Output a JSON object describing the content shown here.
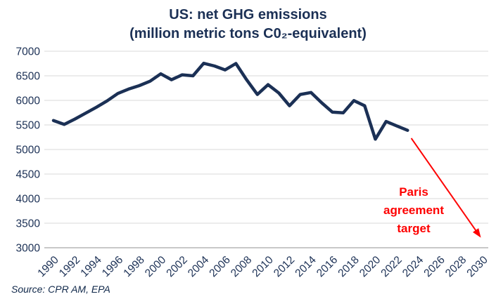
{
  "chart_data": {
    "type": "line",
    "title": "US: net GHG emissions",
    "subtitle": "(million metric tons C0₂-equivalent)",
    "source": "Source: CPR AM, EPA",
    "xlabel": "",
    "ylabel": "",
    "xlim": [
      1990,
      2030
    ],
    "ylim": [
      3000,
      7000
    ],
    "grid": true,
    "legend_position": "none",
    "x_ticks": [
      1990,
      1992,
      1994,
      1996,
      1998,
      2000,
      2002,
      2004,
      2006,
      2008,
      2010,
      2012,
      2014,
      2016,
      2018,
      2020,
      2022,
      2024,
      2026,
      2028,
      2030
    ],
    "y_ticks": [
      7000,
      6500,
      6000,
      5500,
      5000,
      4500,
      4000,
      3500,
      3000
    ],
    "series": [
      {
        "name": "US net GHG emissions",
        "color": "#1b3055",
        "x": [
          1990,
          1991,
          1992,
          1993,
          1994,
          1995,
          1996,
          1997,
          1998,
          1999,
          2000,
          2001,
          2002,
          2003,
          2004,
          2005,
          2006,
          2007,
          2008,
          2009,
          2010,
          2011,
          2012,
          2013,
          2014,
          2015,
          2016,
          2017,
          2018,
          2019,
          2020,
          2021,
          2022,
          2023
        ],
        "values": [
          5590,
          5510,
          5620,
          5740,
          5860,
          5990,
          6140,
          6230,
          6300,
          6390,
          6540,
          6420,
          6520,
          6500,
          6755,
          6700,
          6620,
          6750,
          6420,
          6120,
          6320,
          6150,
          5890,
          6120,
          6160,
          5950,
          5760,
          5745,
          5995,
          5890,
          5210,
          5570,
          5480,
          5390
        ]
      }
    ],
    "annotation": {
      "text_lines": [
        "Paris",
        "agreement",
        "target"
      ],
      "color": "#fe0000",
      "arrow": {
        "from_x": 2023.35,
        "from_y": 5230,
        "to_x": 2029.5,
        "to_y": 3310
      }
    }
  },
  "colors": {
    "navy": "#1b3055",
    "red": "#fe0000",
    "gridline": "#d9d9d9",
    "axis_line": "#a6a6a6",
    "background": "#ffffff"
  }
}
